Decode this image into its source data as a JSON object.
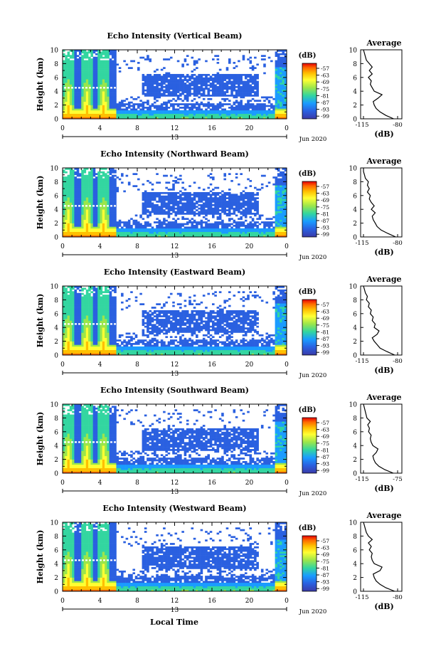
{
  "layout_note": "",
  "common": {
    "ylabel": "Height (km)",
    "yticks": [
      "0",
      "2",
      "4",
      "6",
      "8",
      "10"
    ],
    "xticks": [
      "0",
      "4",
      "8",
      "12",
      "16",
      "20",
      "0"
    ],
    "date_mid": "13",
    "date_right": "Jun 2020",
    "colorbar_title": "(dB)",
    "colorbar_ticks": [
      "-57",
      "-63",
      "-69",
      "-75",
      "-81",
      "-87",
      "-93",
      "-99"
    ],
    "colorbar_colors": [
      "#e60000",
      "#ff6a00",
      "#ffbf00",
      "#ffff33",
      "#9be64b",
      "#33d6a0",
      "#1a9cff",
      "#2a60e0",
      "#3a3aa8"
    ],
    "avg_title": "Average",
    "avg_xlabel": "(dB)",
    "avg_yticks": [
      "0",
      "2",
      "4",
      "6",
      "8",
      "10"
    ],
    "footer_xlabel": "Local Time"
  },
  "chart_data": [
    {
      "type": "heatmap",
      "title": "Echo Intensity (Vertical Beam)",
      "ylabel": "Height (km)",
      "ylim": [
        0,
        10
      ],
      "xlim": [
        0,
        24
      ],
      "colorbar": {
        "label": "(dB)",
        "ticks": [
          -57,
          -63,
          -69,
          -75,
          -81,
          -87,
          -93,
          -99
        ]
      },
      "average_profile": {
        "title": "Average",
        "xlabel": "(dB)",
        "xlim": [
          -115,
          -80
        ],
        "xticks": [
          "-115",
          "-80"
        ],
        "height": [
          0,
          0.5,
          1,
          1.5,
          2,
          2.5,
          3,
          3.5,
          4,
          4.5,
          5,
          5.5,
          6,
          6.5,
          7,
          7.5,
          8,
          8.5,
          9,
          9.5,
          10
        ],
        "values": [
          -84,
          -92,
          -98,
          -102,
          -104,
          -105,
          -100,
          -96,
          -104,
          -106,
          -108,
          -107,
          -110,
          -106,
          -109,
          -106,
          -109,
          -112,
          -113,
          -114,
          -115
        ]
      }
    },
    {
      "type": "heatmap",
      "title": "Echo Intensity (Northward Beam)",
      "ylabel": "Height (km)",
      "ylim": [
        0,
        10
      ],
      "xlim": [
        0,
        24
      ],
      "colorbar": {
        "label": "(dB)",
        "ticks": [
          -57,
          -63,
          -69,
          -75,
          -81,
          -87,
          -93,
          -99
        ]
      },
      "average_profile": {
        "title": "Average",
        "xlabel": "(dB)",
        "xlim": [
          -115,
          -80
        ],
        "xticks": [
          "-115",
          "-80"
        ],
        "height": [
          0,
          0.5,
          1,
          1.5,
          2,
          2.5,
          3,
          3.5,
          4,
          4.5,
          5,
          5.5,
          6,
          6.5,
          7,
          7.5,
          8,
          8.5,
          9,
          9.5,
          10
        ],
        "values": [
          -82,
          -90,
          -97,
          -101,
          -103,
          -105,
          -106,
          -103,
          -107,
          -104,
          -107,
          -109,
          -108,
          -111,
          -109,
          -111,
          -110,
          -113,
          -114,
          -115,
          -115
        ]
      }
    },
    {
      "type": "heatmap",
      "title": "Echo Intensity (Eastward Beam)",
      "ylabel": "Height (km)",
      "ylim": [
        0,
        10
      ],
      "xlim": [
        0,
        24
      ],
      "colorbar": {
        "label": "(dB)",
        "ticks": [
          -57,
          -63,
          -69,
          -75,
          -81,
          -87,
          -93,
          -99
        ]
      },
      "average_profile": {
        "title": "Average",
        "xlabel": "(dB)",
        "xlim": [
          -115,
          -80
        ],
        "xticks": [
          "-115",
          "-80"
        ],
        "height": [
          0,
          0.5,
          1,
          1.5,
          2,
          2.5,
          3,
          3.5,
          4,
          4.5,
          5,
          5.5,
          6,
          6.5,
          7,
          7.5,
          8,
          8.5,
          9,
          9.5,
          10
        ],
        "values": [
          -83,
          -91,
          -98,
          -101,
          -104,
          -106,
          -101,
          -99,
          -104,
          -103,
          -106,
          -105,
          -108,
          -107,
          -110,
          -109,
          -112,
          -111,
          -113,
          -114,
          -115
        ]
      }
    },
    {
      "type": "heatmap",
      "title": "Echo Intensity (Southward Beam)",
      "ylabel": "Height (km)",
      "ylim": [
        0,
        10
      ],
      "xlim": [
        0,
        24
      ],
      "colorbar": {
        "label": "(dB)",
        "ticks": [
          -57,
          -63,
          -69,
          -75,
          -81,
          -87,
          -93,
          -99
        ]
      },
      "average_profile": {
        "title": "Average",
        "xlabel": "(dB)",
        "xlim": [
          -115,
          -75
        ],
        "xticks": [
          "-115",
          "-75"
        ],
        "height": [
          0,
          0.5,
          1,
          1.5,
          2,
          2.5,
          3,
          3.5,
          4,
          4.5,
          5,
          5.5,
          6,
          6.5,
          7,
          7.5,
          8,
          8.5,
          9,
          9.5,
          10
        ],
        "values": [
          -80,
          -90,
          -97,
          -101,
          -103,
          -104,
          -100,
          -98,
          -104,
          -106,
          -107,
          -106,
          -109,
          -108,
          -110,
          -107,
          -111,
          -112,
          -113,
          -114,
          -115
        ]
      }
    },
    {
      "type": "heatmap",
      "title": "Echo Intensity (Westward Beam)",
      "ylabel": "Height (km)",
      "ylim": [
        0,
        10
      ],
      "xlim": [
        0,
        24
      ],
      "colorbar": {
        "label": "(dB)",
        "ticks": [
          -57,
          -63,
          -69,
          -75,
          -81,
          -87,
          -93,
          -99
        ]
      },
      "average_profile": {
        "title": "Average",
        "xlabel": "(dB)",
        "xlim": [
          -115,
          -80
        ],
        "xticks": [
          "-115",
          "-80"
        ],
        "height": [
          0,
          0.5,
          1,
          1.5,
          2,
          2.5,
          3,
          3.5,
          4,
          4.5,
          5,
          5.5,
          6,
          6.5,
          7,
          7.5,
          8,
          8.5,
          9,
          9.5,
          10
        ],
        "values": [
          -83,
          -92,
          -98,
          -102,
          -104,
          -105,
          -98,
          -96,
          -104,
          -106,
          -107,
          -106,
          -109,
          -107,
          -110,
          -106,
          -110,
          -112,
          -113,
          -114,
          -115
        ]
      }
    }
  ]
}
